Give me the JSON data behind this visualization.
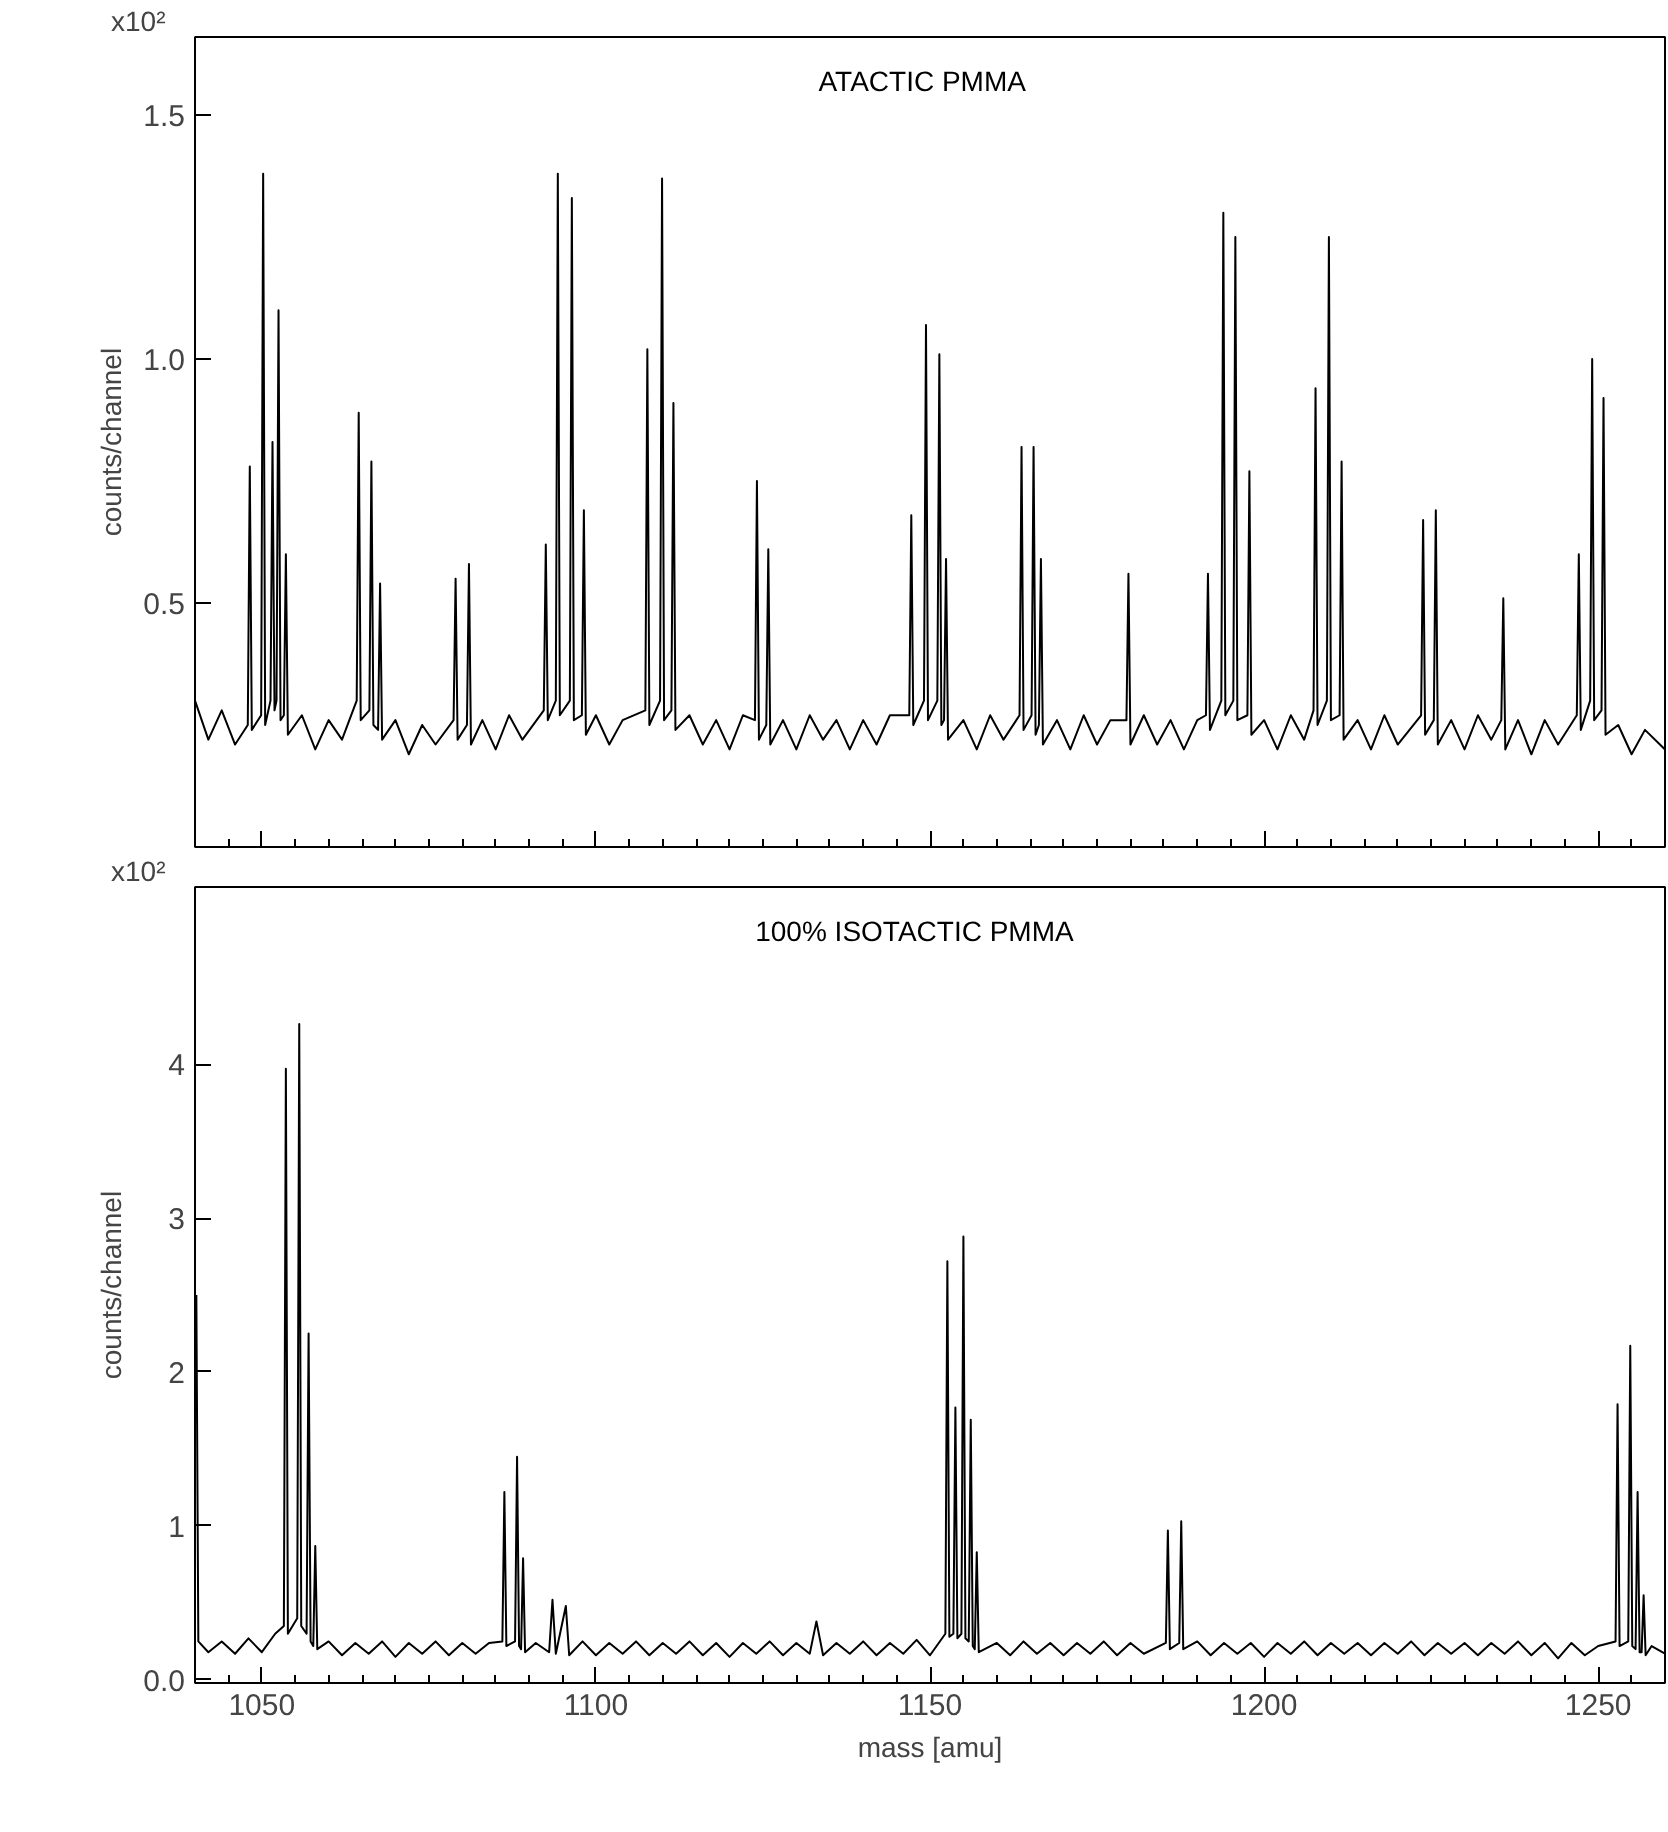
{
  "chart_data": [
    {
      "type": "line",
      "title": "ATACTIC   PMMA",
      "ylabel": "counts/channel",
      "annotations": [
        "x10²"
      ],
      "xlim": [
        1040,
        1260
      ],
      "ylim": [
        0.0,
        1.66
      ],
      "xticks": [
        1050,
        1100,
        1150,
        1200,
        1250
      ],
      "yticks": [
        {
          "value": 0.5,
          "label": "0.5"
        },
        {
          "value": 1.0,
          "label": "1.0"
        },
        {
          "value": 1.5,
          "label": "1.5"
        }
      ],
      "tick_labels": "y",
      "line_style": "solid",
      "series": [
        {
          "color": "#000000",
          "x": [
            1040,
            1042,
            1044,
            1046,
            1047.9,
            1048.2,
            1048.5,
            1049.9,
            1050.2,
            1050.5,
            1051.3,
            1051.6,
            1051.9,
            1052.2,
            1052.5,
            1052.8,
            1053.3,
            1053.6,
            1053.9,
            1056,
            1058,
            1060,
            1062,
            1064.2,
            1064.5,
            1064.8,
            1066.1,
            1066.4,
            1066.7,
            1067.4,
            1067.7,
            1068.0,
            1070,
            1072,
            1074,
            1076,
            1078.7,
            1079.0,
            1079.3,
            1080.7,
            1081.0,
            1081.3,
            1083,
            1085,
            1087,
            1089,
            1092.2,
            1092.5,
            1092.8,
            1094.0,
            1094.3,
            1094.6,
            1096.1,
            1096.4,
            1096.7,
            1097.9,
            1098.2,
            1098.5,
            1100,
            1102,
            1104,
            1107.4,
            1107.7,
            1108.0,
            1109.6,
            1109.9,
            1110.2,
            1111.3,
            1111.6,
            1111.9,
            1114,
            1116,
            1118,
            1120,
            1122,
            1123.8,
            1124.1,
            1124.4,
            1125.5,
            1125.8,
            1126.1,
            1128,
            1130,
            1132,
            1134,
            1136,
            1138,
            1140,
            1142,
            1144,
            1146.9,
            1147.2,
            1147.5,
            1149.1,
            1149.4,
            1149.7,
            1151.1,
            1151.4,
            1151.7,
            1152.1,
            1152.4,
            1152.7,
            1155,
            1157,
            1159,
            1161,
            1163.4,
            1163.7,
            1164.0,
            1165.2,
            1165.5,
            1165.8,
            1166.3,
            1166.6,
            1166.9,
            1169,
            1171,
            1173,
            1175,
            1177,
            1179.4,
            1179.7,
            1180.0,
            1182,
            1184,
            1186,
            1188,
            1190,
            1191.3,
            1191.6,
            1191.9,
            1193.6,
            1193.9,
            1194.2,
            1195.4,
            1195.7,
            1196.0,
            1197.5,
            1197.8,
            1198.1,
            1200,
            1202,
            1204,
            1206,
            1207.4,
            1207.7,
            1208.0,
            1209.4,
            1209.7,
            1210.0,
            1211.3,
            1211.6,
            1211.9,
            1214,
            1216,
            1218,
            1220,
            1223.5,
            1223.8,
            1224.1,
            1225.4,
            1225.7,
            1226.0,
            1228,
            1230,
            1232,
            1234,
            1235.5,
            1235.8,
            1236.1,
            1238,
            1240,
            1242,
            1244,
            1246.8,
            1247.1,
            1247.4,
            1248.8,
            1249.1,
            1249.4,
            1250.5,
            1250.8,
            1251.1,
            1253,
            1255,
            1257,
            1260
          ],
          "values": [
            0.3,
            0.22,
            0.28,
            0.21,
            0.25,
            0.78,
            0.24,
            0.27,
            1.38,
            0.25,
            0.3,
            0.83,
            0.28,
            0.3,
            1.1,
            0.26,
            0.27,
            0.6,
            0.23,
            0.27,
            0.2,
            0.26,
            0.22,
            0.3,
            0.89,
            0.26,
            0.28,
            0.79,
            0.25,
            0.24,
            0.54,
            0.22,
            0.26,
            0.19,
            0.25,
            0.21,
            0.26,
            0.55,
            0.22,
            0.25,
            0.58,
            0.21,
            0.26,
            0.2,
            0.27,
            0.22,
            0.28,
            0.62,
            0.26,
            0.3,
            1.38,
            0.27,
            0.3,
            1.33,
            0.26,
            0.27,
            0.69,
            0.23,
            0.27,
            0.21,
            0.26,
            0.28,
            1.02,
            0.25,
            0.3,
            1.37,
            0.26,
            0.28,
            0.91,
            0.24,
            0.27,
            0.21,
            0.26,
            0.2,
            0.27,
            0.26,
            0.75,
            0.22,
            0.25,
            0.61,
            0.21,
            0.26,
            0.2,
            0.27,
            0.22,
            0.26,
            0.2,
            0.26,
            0.21,
            0.27,
            0.27,
            0.68,
            0.25,
            0.3,
            1.07,
            0.26,
            0.3,
            1.01,
            0.25,
            0.26,
            0.59,
            0.22,
            0.26,
            0.2,
            0.27,
            0.22,
            0.27,
            0.82,
            0.24,
            0.27,
            0.82,
            0.23,
            0.25,
            0.59,
            0.21,
            0.26,
            0.2,
            0.27,
            0.21,
            0.26,
            0.26,
            0.56,
            0.21,
            0.27,
            0.21,
            0.26,
            0.2,
            0.26,
            0.27,
            0.56,
            0.24,
            0.3,
            1.3,
            0.27,
            0.3,
            1.25,
            0.26,
            0.27,
            0.77,
            0.23,
            0.26,
            0.2,
            0.27,
            0.22,
            0.28,
            0.94,
            0.25,
            0.3,
            1.25,
            0.26,
            0.27,
            0.79,
            0.22,
            0.26,
            0.2,
            0.27,
            0.21,
            0.27,
            0.67,
            0.23,
            0.26,
            0.69,
            0.21,
            0.26,
            0.2,
            0.27,
            0.22,
            0.26,
            0.51,
            0.2,
            0.26,
            0.19,
            0.26,
            0.21,
            0.27,
            0.6,
            0.24,
            0.3,
            1.0,
            0.26,
            0.28,
            0.92,
            0.23,
            0.25,
            0.19,
            0.24,
            0.2
          ]
        }
      ]
    },
    {
      "type": "line",
      "title": "100%   ISOTACTIC   PMMA",
      "xlabel": "mass [amu]",
      "ylabel": "counts/channel",
      "annotations": [
        "x10²"
      ],
      "xlim": [
        1040,
        1260
      ],
      "ylim": [
        -0.02,
        5.15
      ],
      "xticks": [
        1050,
        1100,
        1150,
        1200,
        1250
      ],
      "yticks": [
        {
          "value": 0,
          "label": "0.0"
        },
        1,
        2,
        3,
        4
      ],
      "line_style": "solid",
      "series": [
        {
          "color": "#000000",
          "x": [
            1040.2,
            1040.5,
            1042,
            1044,
            1046,
            1048,
            1050,
            1052,
            1053.3,
            1053.6,
            1053.9,
            1055.3,
            1055.6,
            1055.9,
            1056.7,
            1057.0,
            1057.3,
            1057.7,
            1058.0,
            1058.3,
            1060,
            1062,
            1064,
            1066,
            1068,
            1070,
            1072,
            1074,
            1076,
            1078,
            1080,
            1082,
            1084,
            1086.0,
            1086.3,
            1086.6,
            1087.9,
            1088.2,
            1088.5,
            1088.8,
            1089.1,
            1089.4,
            1091,
            1093,
            1093.5,
            1094,
            1095.5,
            1096,
            1098,
            1100,
            1102,
            1104,
            1106,
            1108,
            1110,
            1112,
            1114,
            1116,
            1118,
            1120,
            1122,
            1124,
            1126,
            1128,
            1130,
            1132,
            1133,
            1134,
            1136,
            1138,
            1140,
            1142,
            1144,
            1146,
            1148,
            1150,
            1152.3,
            1152.6,
            1152.9,
            1153.5,
            1153.8,
            1154.1,
            1154.7,
            1155.0,
            1155.3,
            1155.8,
            1156.1,
            1156.4,
            1156.7,
            1157.0,
            1157.3,
            1160,
            1162,
            1164,
            1166,
            1168,
            1170,
            1172,
            1174,
            1176,
            1178,
            1180,
            1182,
            1185.3,
            1185.6,
            1185.9,
            1187.3,
            1187.6,
            1187.9,
            1190,
            1192,
            1194,
            1196,
            1198,
            1200,
            1202,
            1204,
            1206,
            1208,
            1210,
            1212,
            1214,
            1216,
            1218,
            1220,
            1222,
            1224,
            1226,
            1228,
            1230,
            1232,
            1234,
            1236,
            1238,
            1240,
            1242,
            1244,
            1246,
            1248,
            1250,
            1252.6,
            1252.9,
            1253.2,
            1254.5,
            1254.8,
            1255.1,
            1255.6,
            1255.9,
            1256.2,
            1256.5,
            1256.8,
            1257.1,
            1258,
            1260
          ],
          "values": [
            2.5,
            0.25,
            0.18,
            0.25,
            0.17,
            0.27,
            0.18,
            0.3,
            0.35,
            3.97,
            0.3,
            0.4,
            4.26,
            0.35,
            0.3,
            2.25,
            0.25,
            0.22,
            0.87,
            0.2,
            0.25,
            0.16,
            0.24,
            0.17,
            0.25,
            0.15,
            0.24,
            0.17,
            0.25,
            0.16,
            0.24,
            0.17,
            0.24,
            0.25,
            1.22,
            0.22,
            0.25,
            1.45,
            0.22,
            0.2,
            0.79,
            0.18,
            0.24,
            0.18,
            0.52,
            0.17,
            0.48,
            0.16,
            0.25,
            0.16,
            0.24,
            0.17,
            0.25,
            0.16,
            0.24,
            0.17,
            0.25,
            0.16,
            0.24,
            0.15,
            0.24,
            0.17,
            0.25,
            0.16,
            0.24,
            0.17,
            0.38,
            0.16,
            0.24,
            0.17,
            0.25,
            0.16,
            0.24,
            0.17,
            0.26,
            0.16,
            0.3,
            2.72,
            0.28,
            0.3,
            1.77,
            0.27,
            0.3,
            2.88,
            0.27,
            0.25,
            1.69,
            0.22,
            0.2,
            0.83,
            0.18,
            0.24,
            0.16,
            0.25,
            0.17,
            0.24,
            0.16,
            0.24,
            0.17,
            0.25,
            0.16,
            0.24,
            0.17,
            0.24,
            0.97,
            0.2,
            0.24,
            1.03,
            0.2,
            0.25,
            0.16,
            0.24,
            0.17,
            0.24,
            0.15,
            0.24,
            0.17,
            0.25,
            0.16,
            0.24,
            0.17,
            0.24,
            0.16,
            0.24,
            0.17,
            0.25,
            0.16,
            0.24,
            0.17,
            0.24,
            0.16,
            0.24,
            0.17,
            0.25,
            0.16,
            0.24,
            0.14,
            0.24,
            0.16,
            0.22,
            0.25,
            1.79,
            0.22,
            0.25,
            2.17,
            0.22,
            0.2,
            1.22,
            0.18,
            0.18,
            0.55,
            0.16,
            0.22,
            0.17
          ]
        }
      ]
    }
  ]
}
